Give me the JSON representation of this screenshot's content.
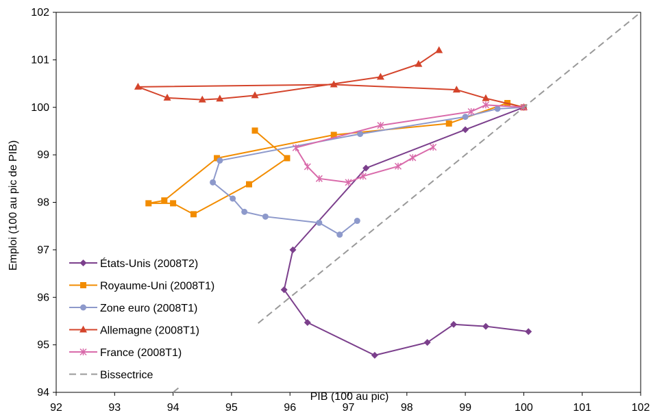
{
  "chart_data": {
    "type": "line",
    "title": "",
    "xlabel": "PIB (100 au pic)",
    "ylabel": "Emploi (100 au pic de PIB)",
    "xlim": [
      92,
      102
    ],
    "ylim": [
      94,
      102
    ],
    "x_ticks": [
      "92",
      "93",
      "94",
      "95",
      "96",
      "97",
      "98",
      "99",
      "100",
      "101",
      "102"
    ],
    "y_ticks": [
      "94",
      "95",
      "96",
      "97",
      "98",
      "99",
      "100",
      "101",
      "102"
    ],
    "grid": false,
    "legend_position": "bottom-left",
    "series": [
      {
        "name": "États-Unis (2008T2)",
        "color": "#7B3F8C",
        "marker": "diamond",
        "points": [
          [
            100.0,
            100.0
          ],
          [
            99.0,
            99.53
          ],
          [
            97.3,
            98.72
          ],
          [
            96.05,
            97.0
          ],
          [
            95.9,
            96.16
          ],
          [
            96.3,
            95.47
          ],
          [
            97.45,
            94.78
          ],
          [
            98.35,
            95.05
          ],
          [
            98.8,
            95.43
          ],
          [
            99.35,
            95.39
          ],
          [
            100.08,
            95.28
          ]
        ]
      },
      {
        "name": "Royaume-Uni (2008T1)",
        "color": "#F28C00",
        "marker": "square",
        "points": [
          [
            100.0,
            100.0
          ],
          [
            99.72,
            100.09
          ],
          [
            98.72,
            99.66
          ],
          [
            96.75,
            99.42
          ],
          [
            94.75,
            98.93
          ],
          [
            93.85,
            98.04
          ],
          [
            93.58,
            97.98
          ],
          [
            94.0,
            97.98
          ],
          [
            94.35,
            97.75
          ],
          [
            95.3,
            98.38
          ],
          [
            95.95,
            98.93
          ],
          [
            95.4,
            99.51
          ]
        ]
      },
      {
        "name": "Zone euro (2008T1)",
        "color": "#8D99CB",
        "marker": "circle",
        "points": [
          [
            100.0,
            100.0
          ],
          [
            99.55,
            99.97
          ],
          [
            99.0,
            99.8
          ],
          [
            97.2,
            99.44
          ],
          [
            94.8,
            98.88
          ],
          [
            94.68,
            98.42
          ],
          [
            95.02,
            98.08
          ],
          [
            95.22,
            97.8
          ],
          [
            95.58,
            97.7
          ],
          [
            96.5,
            97.57
          ],
          [
            96.85,
            97.32
          ],
          [
            97.15,
            97.61
          ]
        ]
      },
      {
        "name": "Allemagne (2008T1)",
        "color": "#D4442B",
        "marker": "triangle",
        "points": [
          [
            100.0,
            100.0
          ],
          [
            99.35,
            100.19
          ],
          [
            98.85,
            100.37
          ],
          [
            96.75,
            100.48
          ],
          [
            93.4,
            100.43
          ],
          [
            93.9,
            100.2
          ],
          [
            94.5,
            100.16
          ],
          [
            94.8,
            100.18
          ],
          [
            95.4,
            100.25
          ],
          [
            97.55,
            100.64
          ],
          [
            98.2,
            100.91
          ],
          [
            98.55,
            101.2
          ]
        ]
      },
      {
        "name": "France (2008T1)",
        "color": "#D96AAA",
        "marker": "star",
        "points": [
          [
            100.0,
            100.0
          ],
          [
            99.35,
            100.05
          ],
          [
            99.1,
            99.91
          ],
          [
            97.55,
            99.62
          ],
          [
            96.1,
            99.15
          ],
          [
            96.3,
            98.75
          ],
          [
            96.5,
            98.5
          ],
          [
            97.0,
            98.42
          ],
          [
            97.25,
            98.55
          ],
          [
            97.85,
            98.76
          ],
          [
            98.1,
            98.94
          ],
          [
            98.45,
            99.16
          ]
        ]
      },
      {
        "name": "Bissectrice",
        "color": "#999999",
        "marker": "none",
        "dashed": true,
        "points": [
          [
            94.0,
            94.0
          ],
          [
            102.0,
            102.0
          ]
        ]
      }
    ]
  }
}
